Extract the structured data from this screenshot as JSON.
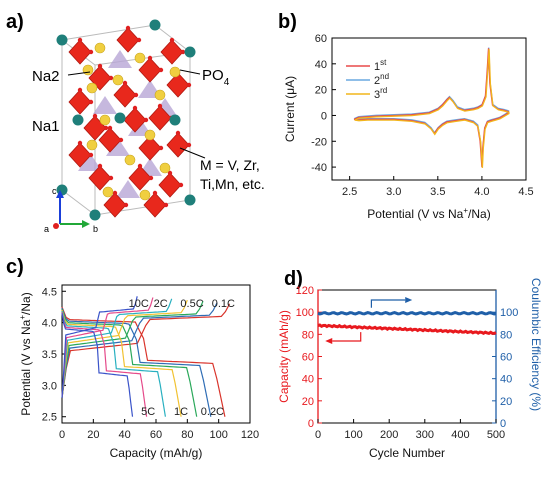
{
  "panels": {
    "a": {
      "letter": "a)",
      "labels": {
        "na2": "Na2",
        "na1": "Na1",
        "po4": "PO",
        "po4_sub": "4",
        "m_line1": "M = V, Zr,",
        "m_line2": "Ti,Mn, etc.",
        "axis_a": "a",
        "axis_b": "b",
        "axis_c": "c"
      },
      "colors": {
        "octahedra": "#e8281c",
        "tetrahedra": "#b8a6d6",
        "na_atoms": "#1f7f7a",
        "o_atoms": "#f0cf40"
      }
    }
  },
  "chart_data": [
    {
      "panel": "b)",
      "type": "line",
      "xlabel": "Potential (V vs Na",
      "xlabel_sup": "+",
      "xlabel_end": "/Na)",
      "ylabel": "Current (μA)",
      "xlim": [
        2.3,
        4.5
      ],
      "ylim": [
        -50,
        60
      ],
      "xticks": [
        "2.5",
        "3.0",
        "3.5",
        "4.0",
        "4.5"
      ],
      "yticks": [
        "-40",
        "-20",
        "0",
        "20",
        "40",
        "60"
      ],
      "legend_position": "upper-left",
      "series": [
        {
          "name": "1",
          "name_sup": "st",
          "color": "#e84a4a"
        },
        {
          "name": "2",
          "name_sup": "nd",
          "color": "#6aa9e0"
        },
        {
          "name": "3",
          "name_sup": "rd",
          "color": "#f2b51c"
        }
      ],
      "cv_curve": [
        [
          2.55,
          -3
        ],
        [
          2.6,
          -1.5
        ],
        [
          2.8,
          -0.5
        ],
        [
          3.0,
          0
        ],
        [
          3.2,
          0.5
        ],
        [
          3.4,
          2
        ],
        [
          3.5,
          5
        ],
        [
          3.55,
          8
        ],
        [
          3.6,
          12
        ],
        [
          3.63,
          14
        ],
        [
          3.67,
          11
        ],
        [
          3.72,
          6
        ],
        [
          3.8,
          4
        ],
        [
          3.9,
          5
        ],
        [
          3.95,
          6
        ],
        [
          4.0,
          8
        ],
        [
          4.04,
          15
        ],
        [
          4.06,
          35
        ],
        [
          4.075,
          52
        ],
        [
          4.09,
          25
        ],
        [
          4.12,
          8
        ],
        [
          4.18,
          5
        ],
        [
          4.25,
          4
        ],
        [
          4.3,
          3
        ],
        [
          4.3,
          2
        ],
        [
          4.25,
          0
        ],
        [
          4.2,
          -2
        ],
        [
          4.15,
          -3
        ],
        [
          4.1,
          -4
        ],
        [
          4.06,
          -5
        ],
        [
          4.03,
          -10
        ],
        [
          4.01,
          -25
        ],
        [
          4.0,
          -40
        ],
        [
          3.98,
          -20
        ],
        [
          3.95,
          -8
        ],
        [
          3.9,
          -5
        ],
        [
          3.8,
          -3
        ],
        [
          3.7,
          -4
        ],
        [
          3.6,
          -5
        ],
        [
          3.55,
          -7
        ],
        [
          3.5,
          -10
        ],
        [
          3.46,
          -14
        ],
        [
          3.42,
          -10
        ],
        [
          3.35,
          -6
        ],
        [
          3.2,
          -4
        ],
        [
          3.0,
          -3
        ],
        [
          2.8,
          -3
        ],
        [
          2.7,
          -3
        ],
        [
          2.6,
          -3.5
        ],
        [
          2.55,
          -3
        ]
      ]
    },
    {
      "panel": "c)",
      "type": "line",
      "xlabel": "Capacity (mAh/g)",
      "ylabel": "Potential (V vs Na",
      "ylabel_sup": "+",
      "ylabel_end": "/Na)",
      "xlim": [
        0,
        120
      ],
      "ylim": [
        2.4,
        4.6
      ],
      "xticks": [
        "0",
        "20",
        "40",
        "60",
        "80",
        "100",
        "120"
      ],
      "yticks": [
        "2.5",
        "3.0",
        "3.5",
        "4.0",
        "4.5"
      ],
      "series": [
        {
          "name": "0.1C",
          "color": "#d9342b",
          "charge_cap": 107,
          "discharge_cap": 104
        },
        {
          "name": "0.2C",
          "color": "#2f6db5",
          "charge_cap": 99,
          "discharge_cap": 95
        },
        {
          "name": "0.5C",
          "color": "#2aa85a",
          "charge_cap": 90,
          "discharge_cap": 86
        },
        {
          "name": "1C",
          "color": "#f1c232",
          "charge_cap": 80,
          "discharge_cap": 76
        },
        {
          "name": "2C",
          "color": "#28b0c0",
          "charge_cap": 70,
          "discharge_cap": 66
        },
        {
          "name": "5C",
          "color": "#e54a8a",
          "charge_cap": 58,
          "discharge_cap": 54
        },
        {
          "name": "10C",
          "color": "#3a53c9",
          "charge_cap": 48,
          "discharge_cap": 45
        }
      ],
      "top_labels": [
        "10C",
        "2C",
        "0.5C",
        "0.1C"
      ],
      "bottom_labels": [
        "5C",
        "1C",
        "0.2C"
      ]
    },
    {
      "panel": "d)",
      "type": "scatter",
      "xlabel": "Cycle Number",
      "ylabel_left": "Capacity (mAh/g)",
      "ylabel_right": "Coulumbic Efficiency (%)",
      "xlim": [
        0,
        500
      ],
      "ylim_left": [
        0,
        120
      ],
      "ylim_right": [
        0,
        120
      ],
      "xticks": [
        "0",
        "100",
        "200",
        "300",
        "400",
        "500"
      ],
      "yticks_left": [
        "0",
        "20",
        "40",
        "60",
        "80",
        "100",
        "120"
      ],
      "yticks_right": [
        "0",
        "20",
        "40",
        "60",
        "80",
        "100"
      ],
      "capacity": {
        "color": "#e8191e",
        "start": 88,
        "end": 81
      },
      "efficiency": {
        "color": "#1f5fa8",
        "value": 99
      }
    }
  ]
}
